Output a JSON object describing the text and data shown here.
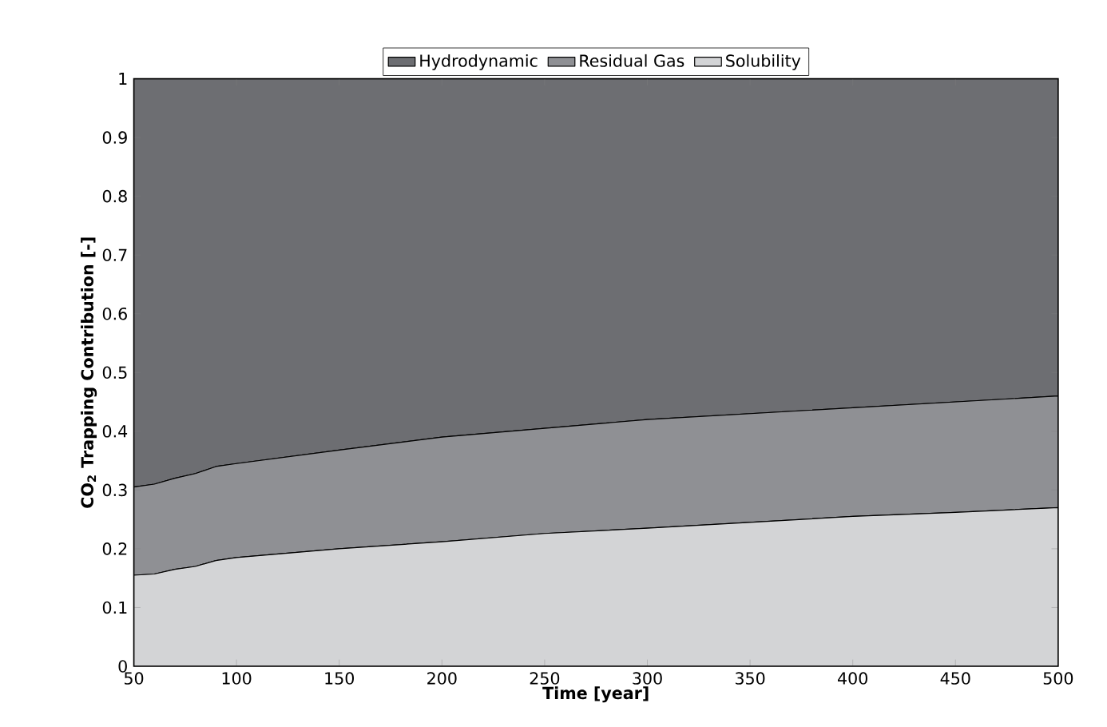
{
  "chart_data": {
    "type": "area",
    "stacked": true,
    "xlabel": "Time [year]",
    "ylabel": "CO$_{2}$ Trapping Contribution [-]",
    "x": [
      50,
      60,
      70,
      80,
      90,
      100,
      150,
      200,
      250,
      300,
      350,
      400,
      450,
      500
    ],
    "series": [
      {
        "name": "Solubility",
        "color": "#d3d4d6",
        "values": [
          0.155,
          0.157,
          0.165,
          0.17,
          0.18,
          0.185,
          0.2,
          0.212,
          0.226,
          0.235,
          0.245,
          0.255,
          0.262,
          0.27
        ]
      },
      {
        "name": "Residual Gas",
        "color": "#8f9094",
        "values": [
          0.15,
          0.153,
          0.155,
          0.158,
          0.16,
          0.16,
          0.168,
          0.178,
          0.179,
          0.185,
          0.185,
          0.185,
          0.188,
          0.19
        ]
      },
      {
        "name": "Hydrodynamic",
        "color": "#6d6e72",
        "values": [
          0.695,
          0.69,
          0.68,
          0.672,
          0.66,
          0.655,
          0.632,
          0.61,
          0.595,
          0.58,
          0.57,
          0.56,
          0.55,
          0.54
        ]
      }
    ],
    "xlim": [
      50,
      500
    ],
    "ylim": [
      0,
      1
    ],
    "xticks": [
      50,
      100,
      150,
      200,
      250,
      300,
      350,
      400,
      450,
      500
    ],
    "yticks": [
      0,
      0.1,
      0.2,
      0.3,
      0.4,
      0.5,
      0.6,
      0.7,
      0.8,
      0.9,
      1
    ],
    "legend": "top"
  }
}
